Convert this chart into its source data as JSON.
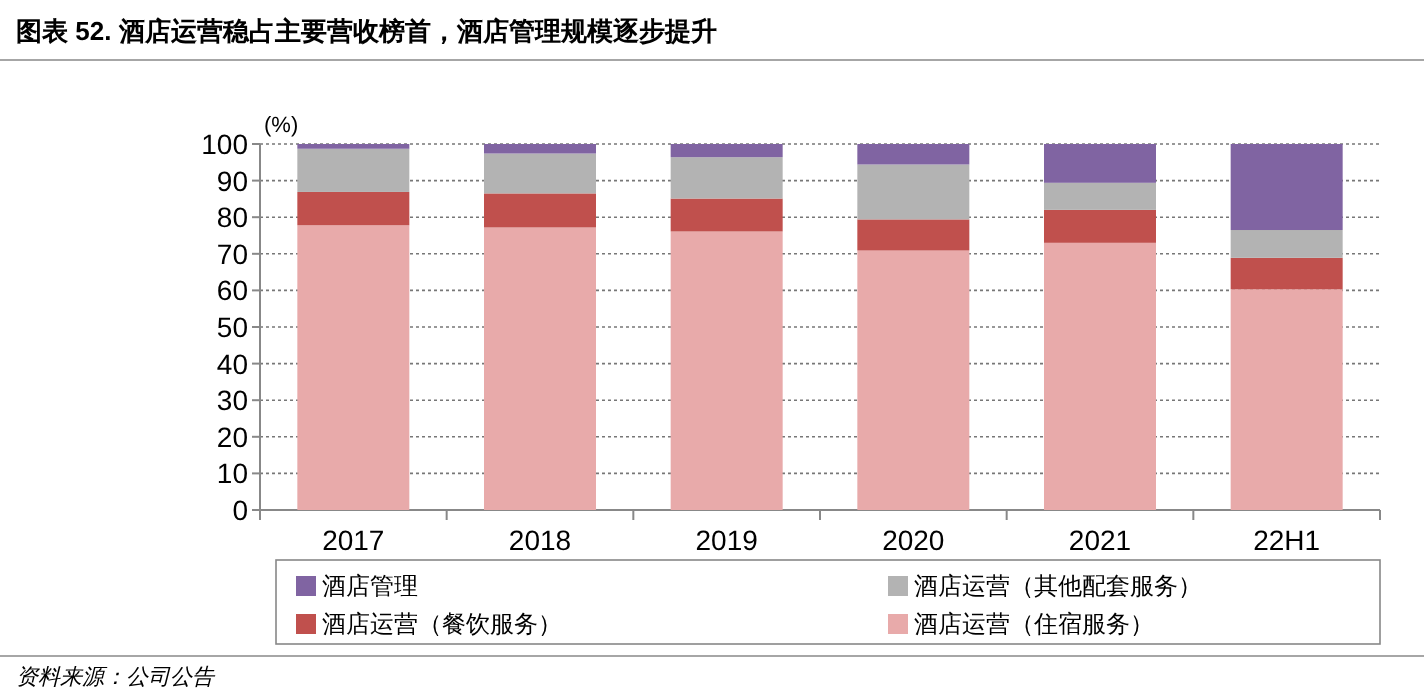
{
  "chart_data": {
    "type": "bar",
    "stacked": true,
    "title": "图表 52. 酒店运营稳占主要营收榜首，酒店管理规模逐步提升",
    "ylabel": "(%)",
    "categories": [
      "2017",
      "2018",
      "2019",
      "2020",
      "2021",
      "22H1"
    ],
    "series": [
      {
        "name": "酒店运营（住宿服务）",
        "color": "#e8aaaa",
        "values": [
          77.8,
          77.2,
          76.1,
          70.9,
          73.0,
          60.3
        ]
      },
      {
        "name": "酒店运营（餐饮服务）",
        "color": "#c0504d",
        "values": [
          9.1,
          9.3,
          9.0,
          8.5,
          9.0,
          8.6
        ]
      },
      {
        "name": "酒店运营（其他配套服务）",
        "color": "#b3b3b3",
        "values": [
          11.8,
          10.9,
          11.3,
          15.0,
          7.4,
          7.6
        ]
      },
      {
        "name": "酒店管理",
        "color": "#8064a2",
        "values": [
          1.3,
          2.6,
          3.6,
          5.6,
          10.6,
          23.5
        ]
      }
    ],
    "ylim": [
      0,
      100
    ],
    "yticks": [
      0,
      10,
      20,
      30,
      40,
      50,
      60,
      70,
      80,
      90,
      100
    ],
    "grid": "y",
    "legend": "bottom",
    "annotations": [
      "资料来源：公司公告"
    ]
  }
}
